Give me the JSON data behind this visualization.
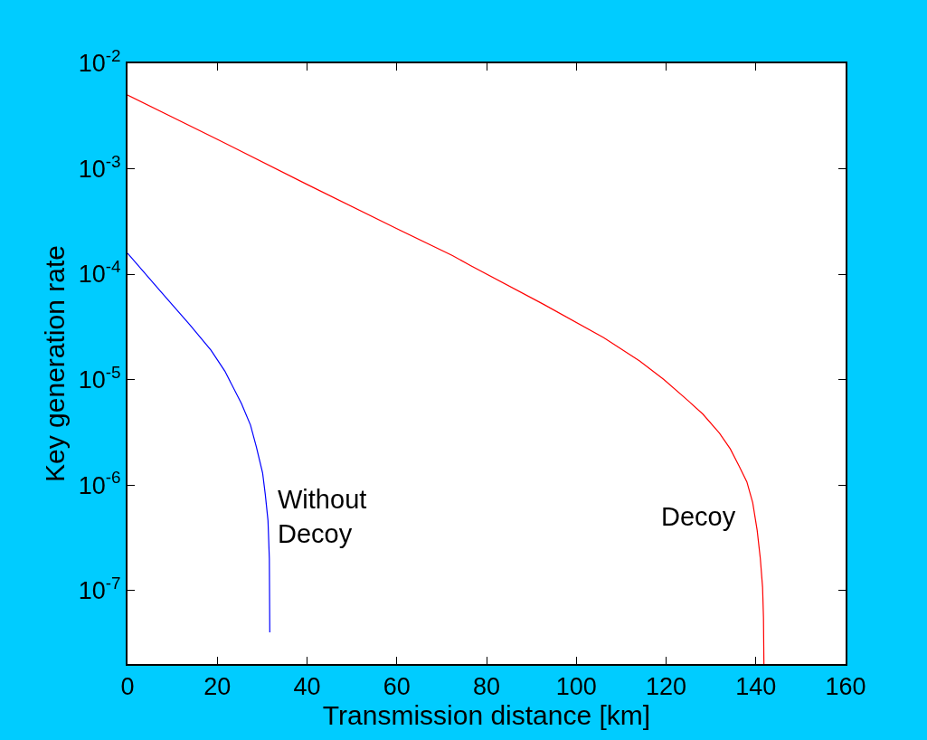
{
  "chart_data": {
    "type": "line",
    "xlabel": "Transmission distance [km]",
    "ylabel": "Key generation rate",
    "log": "y",
    "xlim": [
      0,
      160
    ],
    "xticks": [
      0,
      20,
      40,
      60,
      80,
      100,
      120,
      140,
      160
    ],
    "ylim": [
      2e-08,
      0.01
    ],
    "yticks": [
      {
        "value": 0.01,
        "label": "10$^{-2}$"
      },
      {
        "value": 0.001,
        "label": "10$^{-3}$"
      },
      {
        "value": 0.0001,
        "label": "10$^{-4}$"
      },
      {
        "value": 1e-05,
        "label": "10$^{-5}$"
      },
      {
        "value": 1e-06,
        "label": "10$^{-6}$"
      },
      {
        "value": 1e-07,
        "label": "10$^{-7}$"
      }
    ],
    "legend": false,
    "marker": "none",
    "line_style": "solid",
    "series": [
      {
        "name": "Decoy",
        "color": "#ff0000",
        "x": [
          0,
          20,
          40,
          60,
          72.4,
          76.5,
          92.6,
          106.1,
          114.1,
          119.5,
          124.9,
          128.2,
          131.9,
          134.3,
          136.3,
          138.0,
          139.3,
          140.3,
          141.0,
          141.5,
          141.7,
          141.8
        ],
        "values": [
          0.005,
          0.0019,
          0.00071,
          0.00027,
          0.00015,
          0.00012,
          5.2e-05,
          2.5e-05,
          1.5e-05,
          1e-05,
          6.3e-06,
          4.7e-06,
          3.1e-06,
          2.2e-06,
          1.5e-06,
          1.07e-06,
          6.8e-07,
          3.7e-07,
          2e-07,
          1.07e-07,
          5.5e-08,
          2e-08
        ]
      },
      {
        "name": "Without\nDecoy",
        "color": "#0000ff",
        "x": [
          0,
          7.2,
          13.9,
          18.6,
          21.7,
          25.4,
          27.4,
          28.7,
          30.1,
          30.7,
          31.3,
          31.6,
          31.7
        ],
        "values": [
          0.000158,
          7e-05,
          3.3e-05,
          1.9e-05,
          1.2e-05,
          5.9e-06,
          3.7e-06,
          2.3e-06,
          1.3e-06,
          8.1e-07,
          4.6e-07,
          2e-07,
          4e-08
        ]
      }
    ]
  }
}
